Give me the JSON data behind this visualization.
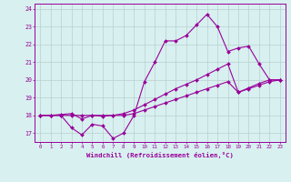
{
  "x": [
    0,
    1,
    2,
    3,
    4,
    5,
    6,
    7,
    8,
    9,
    10,
    11,
    12,
    13,
    14,
    15,
    16,
    17,
    18,
    19,
    20,
    21,
    22,
    23
  ],
  "line1": [
    18.0,
    18.0,
    18.0,
    17.3,
    16.9,
    17.5,
    17.4,
    16.7,
    17.0,
    18.0,
    19.9,
    21.0,
    22.2,
    22.2,
    22.5,
    23.1,
    23.7,
    23.0,
    21.6,
    21.8,
    21.9,
    20.9,
    20.0,
    20.0
  ],
  "line2": [
    18.0,
    18.0,
    18.05,
    18.1,
    17.8,
    18.0,
    17.95,
    18.0,
    18.1,
    18.3,
    18.6,
    18.9,
    19.2,
    19.5,
    19.75,
    20.0,
    20.3,
    20.6,
    20.9,
    19.3,
    19.55,
    19.8,
    20.0,
    20.0
  ],
  "line3": [
    18.0,
    18.0,
    18.0,
    18.0,
    18.0,
    18.0,
    18.0,
    18.0,
    18.0,
    18.1,
    18.3,
    18.5,
    18.7,
    18.9,
    19.1,
    19.3,
    19.5,
    19.7,
    19.9,
    19.3,
    19.5,
    19.7,
    19.9,
    20.0
  ],
  "ylim": [
    16.5,
    24.3
  ],
  "yticks": [
    17,
    18,
    19,
    20,
    21,
    22,
    23,
    24
  ],
  "xticks": [
    0,
    1,
    2,
    3,
    4,
    5,
    6,
    7,
    8,
    9,
    10,
    11,
    12,
    13,
    14,
    15,
    16,
    17,
    18,
    19,
    20,
    21,
    22,
    23
  ],
  "xlabel": "Windchill (Refroidissement éolien,°C)",
  "line_color": "#990099",
  "bg_color": "#d8f0f0",
  "grid_color": "#b8d0d0"
}
